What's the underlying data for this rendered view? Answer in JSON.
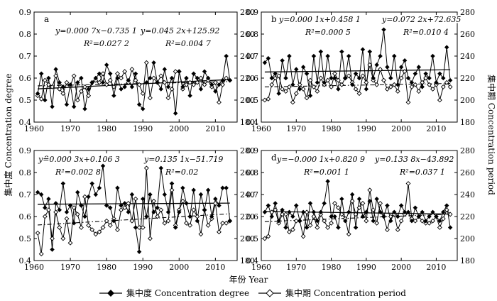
{
  "figure": {
    "y_left_label": "集中度 Concentration degree",
    "y_right_label": "集中期 Concentration period",
    "x_label": "年份 Year"
  },
  "legend": {
    "degree": "集中度 Concentration degree",
    "period": "集中期 Concentration period"
  },
  "chart_data": [
    {
      "type": "line",
      "panel_label": "a",
      "xlabel": "年份 Year",
      "ylabel": "集中度 Concentration degree",
      "y2label": "集中期 Concentration period",
      "xlim": [
        1960,
        2016
      ],
      "ylim": [
        0.4,
        0.9
      ],
      "y2lim": [
        180,
        280
      ],
      "xticks": [
        "1960",
        "1970",
        "1980",
        "1990",
        "2000",
        "2010"
      ],
      "yticks": [
        "0.4",
        "0.5",
        "0.6",
        "0.7",
        "0.8",
        "0.9"
      ],
      "y2ticks": [
        "180",
        "200",
        "220",
        "240",
        "260",
        "280"
      ],
      "x": [
        1961,
        1962,
        1963,
        1964,
        1965,
        1966,
        1967,
        1968,
        1969,
        1970,
        1971,
        1972,
        1973,
        1974,
        1975,
        1976,
        1977,
        1978,
        1979,
        1980,
        1981,
        1982,
        1983,
        1984,
        1985,
        1986,
        1987,
        1988,
        1989,
        1990,
        1991,
        1992,
        1993,
        1994,
        1995,
        1996,
        1997,
        1998,
        1999,
        2000,
        2001,
        2002,
        2003,
        2004,
        2005,
        2006,
        2007,
        2008,
        2009,
        2010,
        2011,
        2012,
        2013,
        2014
      ],
      "series": [
        {
          "name": "集中度 Concentration degree",
          "axis": "left",
          "values": [
            0.53,
            0.62,
            0.5,
            0.6,
            0.47,
            0.64,
            0.58,
            0.56,
            0.48,
            0.57,
            0.47,
            0.58,
            0.6,
            0.46,
            0.55,
            0.58,
            0.6,
            0.62,
            0.58,
            0.66,
            0.62,
            0.52,
            0.6,
            0.55,
            0.56,
            0.59,
            0.56,
            0.62,
            0.48,
            0.46,
            0.58,
            0.6,
            0.67,
            0.58,
            0.55,
            0.64,
            0.56,
            0.6,
            0.44,
            0.63,
            0.56,
            0.6,
            0.52,
            0.62,
            0.6,
            0.55,
            0.63,
            0.6,
            0.57,
            0.54,
            0.57,
            0.59,
            0.7,
            0.59
          ],
          "trend": {
            "label": "y=0.000 7x−0.735 1",
            "r2": "R²=0.027 2"
          }
        },
        {
          "name": "集中期 Concentration period",
          "axis": "right",
          "values": [
            204,
            201,
            218,
            214,
            212,
            222,
            210,
            206,
            216,
            213,
            222,
            200,
            208,
            212,
            204,
            216,
            218,
            216,
            224,
            214,
            218,
            212,
            224,
            220,
            226,
            216,
            228,
            218,
            214,
            206,
            234,
            202,
            220,
            216,
            222,
            216,
            202,
            210,
            226,
            226,
            210,
            214,
            216,
            214,
            216,
            220,
            214,
            218,
            212,
            216,
            198,
            214,
            220,
            218
          ],
          "trend": {
            "label": "y=0.045 2x+125.92",
            "r2": "R²=0.004 7"
          }
        }
      ]
    },
    {
      "type": "line",
      "panel_label": "b",
      "xlabel": "年份 Year",
      "ylabel": "集中度 Concentration degree",
      "y2label": "集中期 Concentration period",
      "xlim": [
        1960,
        2016
      ],
      "ylim": [
        0.4,
        0.9
      ],
      "y2lim": [
        180,
        280
      ],
      "xticks": [
        "1960",
        "1970",
        "1980",
        "1990",
        "2000",
        "2010"
      ],
      "yticks": [
        "0.4",
        "0.5",
        "0.6",
        "0.7",
        "0.8",
        "0.9"
      ],
      "y2ticks": [
        "180",
        "200",
        "220",
        "240",
        "260",
        "280"
      ],
      "x": [
        1961,
        1962,
        1963,
        1964,
        1965,
        1966,
        1967,
        1968,
        1969,
        1970,
        1971,
        1972,
        1973,
        1974,
        1975,
        1976,
        1977,
        1978,
        1979,
        1980,
        1981,
        1982,
        1983,
        1984,
        1985,
        1986,
        1987,
        1988,
        1989,
        1990,
        1991,
        1992,
        1993,
        1994,
        1995,
        1996,
        1997,
        1998,
        1999,
        2000,
        2001,
        2002,
        2003,
        2004,
        2005,
        2006,
        2007,
        2008,
        2009,
        2010,
        2011,
        2012,
        2013,
        2014
      ],
      "series": [
        {
          "name": "集中度 Concentration degree",
          "axis": "left",
          "values": [
            0.67,
            0.69,
            0.6,
            0.62,
            0.53,
            0.68,
            0.6,
            0.7,
            0.57,
            0.64,
            0.55,
            0.65,
            0.62,
            0.52,
            0.7,
            0.58,
            0.72,
            0.58,
            0.7,
            0.6,
            0.6,
            0.55,
            0.72,
            0.6,
            0.7,
            0.57,
            0.62,
            0.6,
            0.73,
            0.55,
            0.72,
            0.6,
            0.66,
            0.7,
            0.82,
            0.65,
            0.6,
            0.7,
            0.57,
            0.65,
            0.68,
            0.6,
            0.58,
            0.62,
            0.65,
            0.56,
            0.62,
            0.6,
            0.7,
            0.58,
            0.62,
            0.6,
            0.74,
            0.59
          ],
          "trend": {
            "label": "y=0.000 1x+0.458 1",
            "r2": "R²=0.000 5"
          }
        },
        {
          "name": "集中期 Concentration period",
          "axis": "right",
          "values": [
            200,
            201,
            214,
            220,
            222,
            210,
            208,
            212,
            198,
            206,
            214,
            210,
            202,
            218,
            212,
            208,
            220,
            214,
            218,
            212,
            224,
            218,
            214,
            220,
            222,
            216,
            210,
            206,
            222,
            216,
            232,
            218,
            214,
            228,
            218,
            210,
            212,
            214,
            208,
            220,
            226,
            198,
            212,
            214,
            208,
            216,
            220,
            214,
            210,
            214,
            200,
            212,
            216,
            212
          ],
          "trend": {
            "label": "y=0.072 2x+72.635",
            "r2": "R²=0.010 4"
          }
        }
      ]
    },
    {
      "type": "line",
      "panel_label": "c",
      "xlabel": "年份 Year",
      "ylabel": "集中度 Concentration degree",
      "y2label": "集中期 Concentration period",
      "xlim": [
        1960,
        2016
      ],
      "ylim": [
        0.4,
        0.9
      ],
      "y2lim": [
        180,
        280
      ],
      "xticks": [
        "1960",
        "1970",
        "1980",
        "1990",
        "2000",
        "2010"
      ],
      "yticks": [
        "0.4",
        "0.5",
        "0.6",
        "0.7",
        "0.8",
        "0.9"
      ],
      "y2ticks": [
        "180",
        "200",
        "220",
        "240",
        "260",
        "280"
      ],
      "x": [
        1961,
        1962,
        1963,
        1964,
        1965,
        1966,
        1967,
        1968,
        1969,
        1970,
        1971,
        1972,
        1973,
        1974,
        1975,
        1976,
        1977,
        1978,
        1979,
        1980,
        1981,
        1982,
        1983,
        1984,
        1985,
        1986,
        1987,
        1988,
        1989,
        1990,
        1991,
        1992,
        1993,
        1994,
        1995,
        1996,
        1997,
        1998,
        1999,
        2000,
        2001,
        2002,
        2003,
        2004,
        2005,
        2006,
        2007,
        2008,
        2009,
        2010,
        2011,
        2012,
        2013,
        2014
      ],
      "series": [
        {
          "name": "集中度 Concentration degree",
          "axis": "left",
          "values": [
            0.71,
            0.7,
            0.64,
            0.68,
            0.45,
            0.66,
            0.63,
            0.75,
            0.62,
            0.65,
            0.57,
            0.71,
            0.65,
            0.6,
            0.69,
            0.75,
            0.7,
            0.73,
            0.83,
            0.65,
            0.64,
            0.58,
            0.73,
            0.65,
            0.66,
            0.62,
            0.7,
            0.55,
            0.44,
            0.68,
            0.6,
            0.7,
            0.62,
            0.64,
            0.82,
            0.7,
            0.62,
            0.75,
            0.55,
            0.62,
            0.73,
            0.66,
            0.6,
            0.72,
            0.58,
            0.7,
            0.63,
            0.72,
            0.6,
            0.68,
            0.65,
            0.73,
            0.73,
            0.58
          ],
          "trend": {
            "label": "y=0.000 3x+0.106 3",
            "r2": "R²=0.002 8"
          }
        },
        {
          "name": "集中期 Concentration period",
          "axis": "right",
          "values": [
            205,
            186,
            220,
            226,
            200,
            224,
            210,
            200,
            218,
            196,
            228,
            222,
            210,
            238,
            212,
            208,
            204,
            206,
            210,
            216,
            212,
            218,
            208,
            226,
            228,
            232,
            216,
            236,
            210,
            210,
            264,
            200,
            234,
            220,
            226,
            214,
            216,
            244,
            212,
            226,
            234,
            214,
            212,
            226,
            220,
            204,
            226,
            212,
            218,
            232,
            206,
            214,
            214,
            216
          ],
          "trend": {
            "label": "y=0.135 1x−51.719",
            "r2": "R²=0.02"
          }
        }
      ]
    },
    {
      "type": "line",
      "panel_label": "d",
      "xlabel": "年份 Year",
      "ylabel": "集中度 Concentration degree",
      "y2label": "集中期 Concentration period",
      "xlim": [
        1960,
        2016
      ],
      "ylim": [
        0.4,
        0.9
      ],
      "y2lim": [
        180,
        280
      ],
      "xticks": [
        "1960",
        "1970",
        "1980",
        "1990",
        "2000",
        "2010"
      ],
      "yticks": [
        "0.4",
        "0.5",
        "0.6",
        "0.7",
        "0.8",
        "0.9"
      ],
      "y2ticks": [
        "180",
        "200",
        "220",
        "240",
        "260",
        "280"
      ],
      "x": [
        1961,
        1962,
        1963,
        1964,
        1965,
        1966,
        1967,
        1968,
        1969,
        1970,
        1971,
        1972,
        1973,
        1974,
        1975,
        1976,
        1977,
        1978,
        1979,
        1980,
        1981,
        1982,
        1983,
        1984,
        1985,
        1986,
        1987,
        1988,
        1989,
        1990,
        1991,
        1992,
        1993,
        1994,
        1995,
        1996,
        1997,
        1998,
        1999,
        2000,
        2001,
        2002,
        2003,
        2004,
        2005,
        2006,
        2007,
        2008,
        2009,
        2010,
        2011,
        2012,
        2013,
        2014
      ],
      "series": [
        {
          "name": "集中度 Concentration degree",
          "axis": "left",
          "values": [
            0.62,
            0.65,
            0.6,
            0.66,
            0.58,
            0.63,
            0.55,
            0.62,
            0.6,
            0.65,
            0.58,
            0.62,
            0.55,
            0.66,
            0.62,
            0.58,
            0.62,
            0.66,
            0.76,
            0.6,
            0.6,
            0.55,
            0.68,
            0.58,
            0.62,
            0.7,
            0.55,
            0.68,
            0.6,
            0.62,
            0.67,
            0.58,
            0.68,
            0.62,
            0.6,
            0.65,
            0.58,
            0.62,
            0.6,
            0.65,
            0.62,
            0.62,
            0.58,
            0.64,
            0.6,
            0.62,
            0.58,
            0.6,
            0.62,
            0.6,
            0.58,
            0.62,
            0.65,
            0.55
          ],
          "trend": {
            "label": "y=−0.000 1x+0.820 9",
            "r2": "R²=0.001 1"
          }
        },
        {
          "name": "集中期 Concentration period",
          "axis": "right",
          "values": [
            200,
            202,
            224,
            226,
            214,
            222,
            222,
            206,
            208,
            216,
            216,
            202,
            224,
            212,
            220,
            210,
            222,
            216,
            210,
            214,
            232,
            228,
            222,
            218,
            204,
            234,
            222,
            228,
            232,
            216,
            244,
            226,
            214,
            232,
            220,
            208,
            220,
            222,
            208,
            216,
            222,
            250,
            218,
            216,
            220,
            216,
            214,
            214,
            216,
            220,
            210,
            218,
            226,
            222
          ],
          "trend": {
            "label": "y=0.133 8x−43.892",
            "r2": "R²=0.037 1"
          }
        }
      ]
    }
  ]
}
